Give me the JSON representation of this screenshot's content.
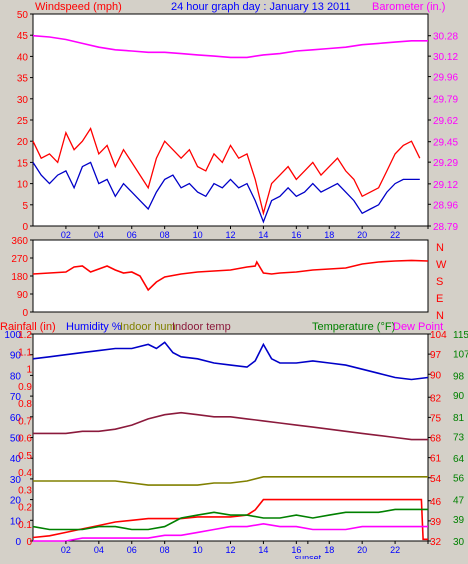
{
  "header": {
    "windspeed_label": "Windspeed (mph)",
    "title": "24 hour graph day : January 13 2011",
    "barometer_label": "Barometer (in.)"
  },
  "colors": {
    "background": "#d4d0c8",
    "plot_bg": "#ffffff",
    "red": "#ff0000",
    "blue": "#0000c8",
    "magenta": "#ff00ff",
    "green": "#008000",
    "olive": "#808000",
    "maroon": "#8b1a3c",
    "axis_text_blue": "#0000ff"
  },
  "x_axis": {
    "tick_labels": [
      "02",
      "04",
      "06",
      "08",
      "10",
      "12",
      "14",
      "16",
      "18",
      "20",
      "22"
    ],
    "sunset_label": "sunset"
  },
  "chart_data": [
    {
      "type": "line",
      "name_ref": "wind",
      "left_axis": {
        "label": "Windspeed (mph)",
        "ticks": [
          "0",
          "5",
          "10",
          "15",
          "20",
          "25",
          "30",
          "35",
          "40",
          "45",
          "50"
        ],
        "range": [
          0,
          50
        ]
      },
      "right_axis": {
        "label": "Barometer (in.)",
        "ticks": [
          "28.79",
          "28.96",
          "29.12",
          "29.29",
          "29.45",
          "29.62",
          "29.79",
          "29.96",
          "30.12",
          "30.28"
        ],
        "range": [
          28.79,
          30.45
        ]
      },
      "x_range": [
        0,
        24
      ],
      "series": [
        {
          "name": "Windspeed (mph)",
          "key": "gust",
          "color": "#ff0000",
          "axis": "left",
          "x": [
            0,
            0.5,
            1,
            1.5,
            2,
            2.5,
            3,
            3.5,
            4,
            4.5,
            5,
            5.5,
            6,
            6.5,
            7,
            7.5,
            8,
            8.5,
            9,
            9.5,
            10,
            10.5,
            11,
            11.5,
            12,
            12.5,
            13,
            13.5,
            14,
            14.5,
            15,
            15.5,
            16,
            16.5,
            17,
            17.5,
            18,
            18.5,
            19,
            19.5,
            20,
            20.5,
            21,
            21.5,
            22,
            22.5,
            23,
            23.5
          ],
          "values": [
            20,
            16,
            17,
            15,
            22,
            18,
            20,
            23,
            17,
            19,
            14,
            18,
            15,
            12,
            9,
            16,
            20,
            18,
            16,
            18,
            14,
            13,
            17,
            15,
            19,
            16,
            17,
            11,
            3,
            10,
            12,
            14,
            11,
            13,
            15,
            12,
            14,
            16,
            13,
            11,
            7,
            8,
            9,
            13,
            17,
            19,
            20,
            16
          ]
        },
        {
          "name": "wind average",
          "key": "avg",
          "color": "#0000c8",
          "axis": "left",
          "x": [
            0,
            0.5,
            1,
            1.5,
            2,
            2.5,
            3,
            3.5,
            4,
            4.5,
            5,
            5.5,
            6,
            6.5,
            7,
            7.5,
            8,
            8.5,
            9,
            9.5,
            10,
            10.5,
            11,
            11.5,
            12,
            12.5,
            13,
            13.5,
            14,
            14.5,
            15,
            15.5,
            16,
            16.5,
            17,
            17.5,
            18,
            18.5,
            19,
            19.5,
            20,
            20.5,
            21,
            21.5,
            22,
            22.5,
            23,
            23.5
          ],
          "values": [
            15,
            12,
            10,
            12,
            13,
            9,
            14,
            15,
            10,
            11,
            7,
            10,
            8,
            6,
            4,
            8,
            11,
            12,
            9,
            10,
            8,
            7,
            10,
            9,
            11,
            9,
            10,
            6,
            1,
            6,
            7,
            9,
            7,
            8,
            10,
            8,
            9,
            10,
            8,
            6,
            3,
            4,
            5,
            8,
            10,
            11,
            11,
            11
          ]
        },
        {
          "name": "Barometer (in.)",
          "key": "baro",
          "color": "#ff00ff",
          "axis": "right",
          "x": [
            0,
            1,
            2,
            3,
            4,
            5,
            6,
            7,
            8,
            9,
            10,
            11,
            12,
            13,
            14,
            15,
            16,
            17,
            18,
            19,
            20,
            21,
            22,
            23,
            24
          ],
          "values": [
            30.28,
            30.27,
            30.25,
            30.22,
            30.19,
            30.17,
            30.16,
            30.15,
            30.15,
            30.14,
            30.13,
            30.12,
            30.11,
            30.11,
            30.13,
            30.14,
            30.16,
            30.17,
            30.18,
            30.19,
            30.21,
            30.22,
            30.23,
            30.24,
            30.24
          ]
        }
      ]
    },
    {
      "type": "line",
      "name_ref": "direction",
      "left_axis": {
        "ticks": [
          "0",
          "90",
          "180",
          "270",
          "360"
        ],
        "range": [
          0,
          360
        ]
      },
      "right_axis": {
        "ticks": [
          "N",
          "E",
          "S",
          "W",
          "N"
        ]
      },
      "x_range": [
        0,
        24
      ],
      "series": [
        {
          "key": "dir",
          "color": "#ff0000",
          "x": [
            0,
            1,
            2,
            2.5,
            3,
            3.5,
            4,
            4.5,
            5,
            5.5,
            6,
            6.5,
            7,
            7.5,
            8,
            9,
            10,
            11,
            12,
            13,
            13.5,
            13.6,
            14,
            14.5,
            15,
            16,
            17,
            18,
            19,
            20,
            21,
            22,
            23,
            24
          ],
          "values": [
            190,
            195,
            200,
            225,
            230,
            200,
            215,
            230,
            210,
            195,
            200,
            180,
            110,
            150,
            175,
            190,
            200,
            205,
            210,
            225,
            230,
            250,
            195,
            190,
            195,
            200,
            210,
            215,
            220,
            240,
            250,
            255,
            258,
            255
          ]
        }
      ]
    },
    {
      "type": "line",
      "name_ref": "climate",
      "header": {
        "rainfall_label": "Rainfall (in)",
        "humidity_label": "Humidity %",
        "indoor_hum_label": "Indoor hum",
        "indoor_temp_label": "Indoor temp",
        "temperature_label": "Temperature (°F)",
        "dew_point_label": "Dew Point"
      },
      "left_axis_humidity": {
        "ticks": [
          "0",
          "10",
          "20",
          "30",
          "40",
          "50",
          "60",
          "70",
          "80",
          "90",
          "100"
        ],
        "range": [
          0,
          100
        ]
      },
      "left_axis_rain": {
        "ticks": [
          "0",
          "0.1",
          "0.2",
          "0.3",
          "0.4",
          "0.5",
          "0.6",
          "0.7",
          "0.8",
          "0.9",
          "1",
          "1.1",
          "1.2"
        ],
        "range": [
          0,
          1.2
        ]
      },
      "right_axis_inner": {
        "ticks": [
          "32",
          "39",
          "46",
          "54",
          "61",
          "68",
          "75",
          "82",
          "90",
          "97",
          "104"
        ],
        "range": [
          32,
          104
        ]
      },
      "right_axis_outer": {
        "ticks": [
          "30",
          "39",
          "47",
          "56",
          "64",
          "73",
          "81",
          "90",
          "98",
          "107",
          "115"
        ],
        "range": [
          30,
          115
        ]
      },
      "x_range": [
        0,
        24
      ],
      "series": [
        {
          "name": "Humidity %",
          "key": "humidity",
          "color": "#0000c8",
          "x": [
            0,
            1,
            2,
            3,
            4,
            5,
            6,
            7,
            7.5,
            8,
            8.5,
            9,
            10,
            11,
            12,
            13,
            13.5,
            14,
            14.5,
            15,
            16,
            17,
            18,
            19,
            20,
            21,
            22,
            23,
            24
          ],
          "values": [
            88,
            89,
            90,
            91,
            92,
            93,
            93,
            95,
            93,
            96,
            91,
            89,
            88,
            86,
            85,
            84,
            87,
            95,
            88,
            86,
            86,
            87,
            86,
            85,
            83,
            81,
            79,
            78,
            79
          ]
        },
        {
          "name": "Indoor temp",
          "key": "indoor_temp",
          "color": "#8b1a3c",
          "x": [
            0,
            1,
            2,
            3,
            4,
            5,
            6,
            7,
            8,
            9,
            10,
            11,
            12,
            13,
            14,
            15,
            16,
            17,
            18,
            19,
            20,
            21,
            22,
            23,
            24
          ],
          "values": [
            52,
            52,
            52,
            53,
            53,
            54,
            56,
            59,
            61,
            62,
            61,
            60,
            60,
            59,
            58,
            57,
            56,
            55,
            54,
            53,
            52,
            51,
            50,
            49,
            49
          ]
        },
        {
          "name": "Indoor hum",
          "key": "indoor_hum",
          "color": "#808000",
          "x": [
            0,
            1,
            2,
            3,
            4,
            5,
            6,
            7,
            8,
            9,
            10,
            11,
            12,
            13,
            14,
            15,
            16,
            17,
            18,
            19,
            20,
            21,
            22,
            23,
            24
          ],
          "values": [
            29,
            29,
            29,
            29,
            29,
            29,
            28,
            27,
            27,
            27,
            27,
            28,
            28,
            29,
            31,
            31,
            31,
            31,
            31,
            31,
            31,
            31,
            31,
            31,
            31
          ]
        },
        {
          "name": "Rainfall (in)",
          "key": "rain",
          "color": "#ff0000",
          "x": [
            0,
            1,
            2,
            3,
            4,
            5,
            6,
            7,
            8,
            9,
            10,
            11,
            12,
            13,
            13.5,
            14,
            15,
            16,
            17,
            18,
            19,
            20,
            21,
            22,
            23,
            23.6,
            23.7,
            24
          ],
          "values": [
            0.02,
            0.03,
            0.05,
            0.07,
            0.09,
            0.11,
            0.12,
            0.13,
            0.13,
            0.13,
            0.14,
            0.14,
            0.14,
            0.15,
            0.18,
            0.24,
            0.24,
            0.24,
            0.24,
            0.24,
            0.24,
            0.24,
            0.24,
            0.24,
            0.24,
            0.24,
            0.01,
            0.01
          ]
        },
        {
          "name": "Temperature (°F)",
          "key": "temperature",
          "color": "#008000",
          "x": [
            0,
            1,
            2,
            3,
            4,
            5,
            6,
            7,
            8,
            9,
            10,
            11,
            12,
            13,
            14,
            15,
            16,
            17,
            18,
            19,
            20,
            21,
            22,
            23,
            24
          ],
          "values": [
            37,
            36,
            36,
            36,
            37,
            37,
            36,
            36,
            37,
            40,
            41,
            42,
            41,
            41,
            40,
            40,
            41,
            40,
            41,
            42,
            42,
            42,
            43,
            43,
            43
          ]
        },
        {
          "name": "Dew Point",
          "key": "dew_point",
          "color": "#ff00ff",
          "x": [
            0,
            1,
            2,
            3,
            4,
            5,
            6,
            7,
            8,
            9,
            10,
            11,
            12,
            13,
            14,
            15,
            16,
            17,
            18,
            19,
            20,
            21,
            22,
            23,
            24
          ],
          "values": [
            32,
            32,
            32,
            33,
            33,
            33,
            33,
            33,
            34,
            34,
            35,
            36,
            37,
            37,
            38,
            37,
            37,
            36,
            36,
            36,
            37,
            37,
            37,
            37,
            37
          ]
        }
      ]
    }
  ]
}
